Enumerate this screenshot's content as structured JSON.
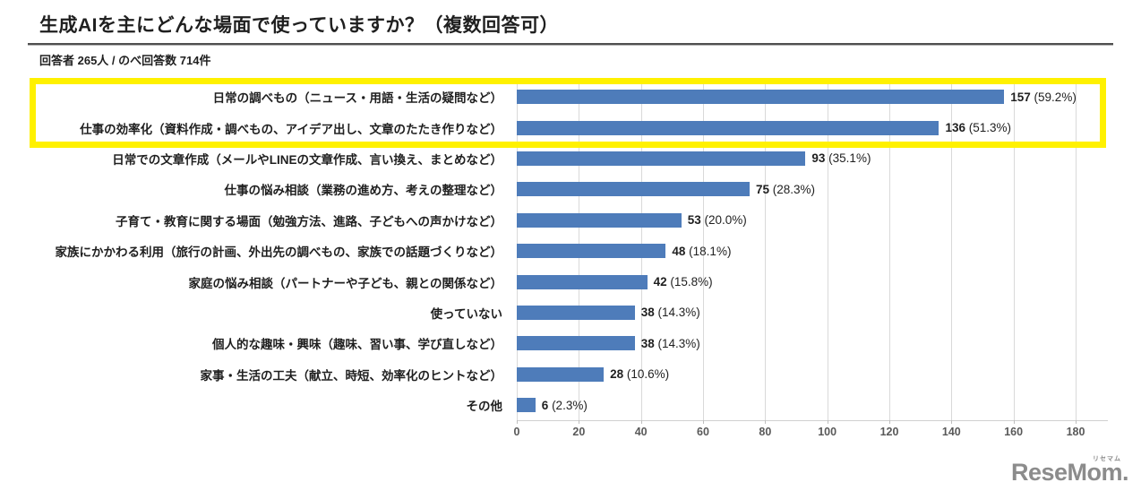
{
  "header": {
    "title": "生成AIを主にどんな場面で使っていますか？（複数回答可）",
    "subtitle": "回答者 265人 / のべ回答数 714件"
  },
  "chart_data": {
    "type": "bar",
    "orientation": "horizontal",
    "title": "生成AIを主にどんな場面で使っていますか？（複数回答可）",
    "subtitle": "回答者 265人 / のべ回答数 714件",
    "categories": [
      "日常の調べもの（ニュース・用語・生活の疑問など）",
      "仕事の効率化（資料作成・調べもの、アイデア出し、文章のたたき作りなど）",
      "日常での文章作成（メールやLINEの文章作成、言い換え、まとめなど）",
      "仕事の悩み相談（業務の進め方、考えの整理など）",
      "子育て・教育に関する場面（勉強方法、進路、子どもへの声かけなど）",
      "家族にかかわる利用（旅行の計画、外出先の調べもの、家族での話題づくりなど）",
      "家庭の悩み相談（パートナーや子ども、親との関係など）",
      "使っていない",
      "個人的な趣味・興味（趣味、習い事、学び直しなど）",
      "家事・生活の工夫（献立、時短、効率化のヒントなど）",
      "その他"
    ],
    "values": [
      157,
      136,
      93,
      75,
      53,
      48,
      42,
      38,
      38,
      28,
      6
    ],
    "percents": [
      "59.2%",
      "51.3%",
      "35.1%",
      "28.3%",
      "20.0%",
      "18.1%",
      "15.8%",
      "14.3%",
      "14.3%",
      "10.6%",
      "2.3%"
    ],
    "x_ticks": [
      0,
      20,
      40,
      60,
      80,
      100,
      120,
      140,
      160,
      180
    ],
    "xlim": [
      0,
      190
    ],
    "grid": true,
    "legend": false,
    "bar_color": "#4e7cba",
    "highlight_rows": [
      0,
      1
    ],
    "highlight_color": "#fff100"
  },
  "footer": {
    "logo_text": "ReseMom.",
    "logo_ruby": "リセマム",
    "logo_color": "#8c8c8c"
  }
}
